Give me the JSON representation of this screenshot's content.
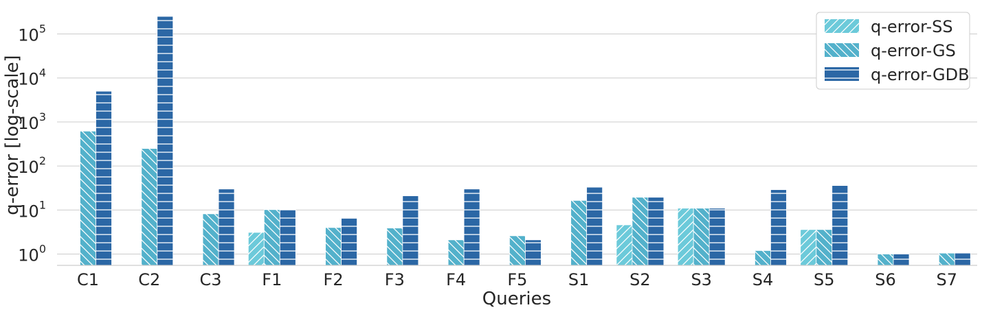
{
  "chart_data": {
    "type": "bar",
    "title": "",
    "xlabel": "Queries",
    "ylabel": "q-error [log-scale]",
    "yscale": "log",
    "ylim": [
      0.55,
      250000
    ],
    "grid": "horizontal",
    "legend_position": "top-right",
    "categories": [
      "C1",
      "C2",
      "C3",
      "F1",
      "F2",
      "F3",
      "F4",
      "F5",
      "S1",
      "S2",
      "S3",
      "S4",
      "S5",
      "S6",
      "S7"
    ],
    "yticks": [
      {
        "value": 1,
        "base": "10",
        "exp": "0"
      },
      {
        "value": 10,
        "base": "10",
        "exp": "1"
      },
      {
        "value": 100,
        "base": "10",
        "exp": "2"
      },
      {
        "value": 1000,
        "base": "10",
        "exp": "3"
      },
      {
        "value": 10000,
        "base": "10",
        "exp": "4"
      },
      {
        "value": 100000,
        "base": "10",
        "exp": "5"
      }
    ],
    "series": [
      {
        "name": "q-error-SS",
        "color": "#6ccada",
        "hatch": "diagonal-up",
        "values": [
          null,
          null,
          null,
          3.1,
          null,
          null,
          null,
          null,
          null,
          4.6,
          11,
          null,
          3.6,
          null,
          null
        ]
      },
      {
        "name": "q-error-GS",
        "color": "#53b1cb",
        "hatch": "diagonal-down",
        "values": [
          620,
          250,
          8.2,
          10.2,
          4.0,
          3.9,
          2.1,
          2.6,
          16.5,
          19.5,
          11,
          1.2,
          3.6,
          1.0,
          1.05
        ]
      },
      {
        "name": "q-error-GDB",
        "color": "#2b67a5",
        "hatch": "horizontal",
        "values": [
          5000,
          250000,
          30,
          10.2,
          6.5,
          21,
          30,
          2.1,
          33,
          19.5,
          11,
          29,
          36,
          1.0,
          1.05
        ]
      }
    ]
  }
}
